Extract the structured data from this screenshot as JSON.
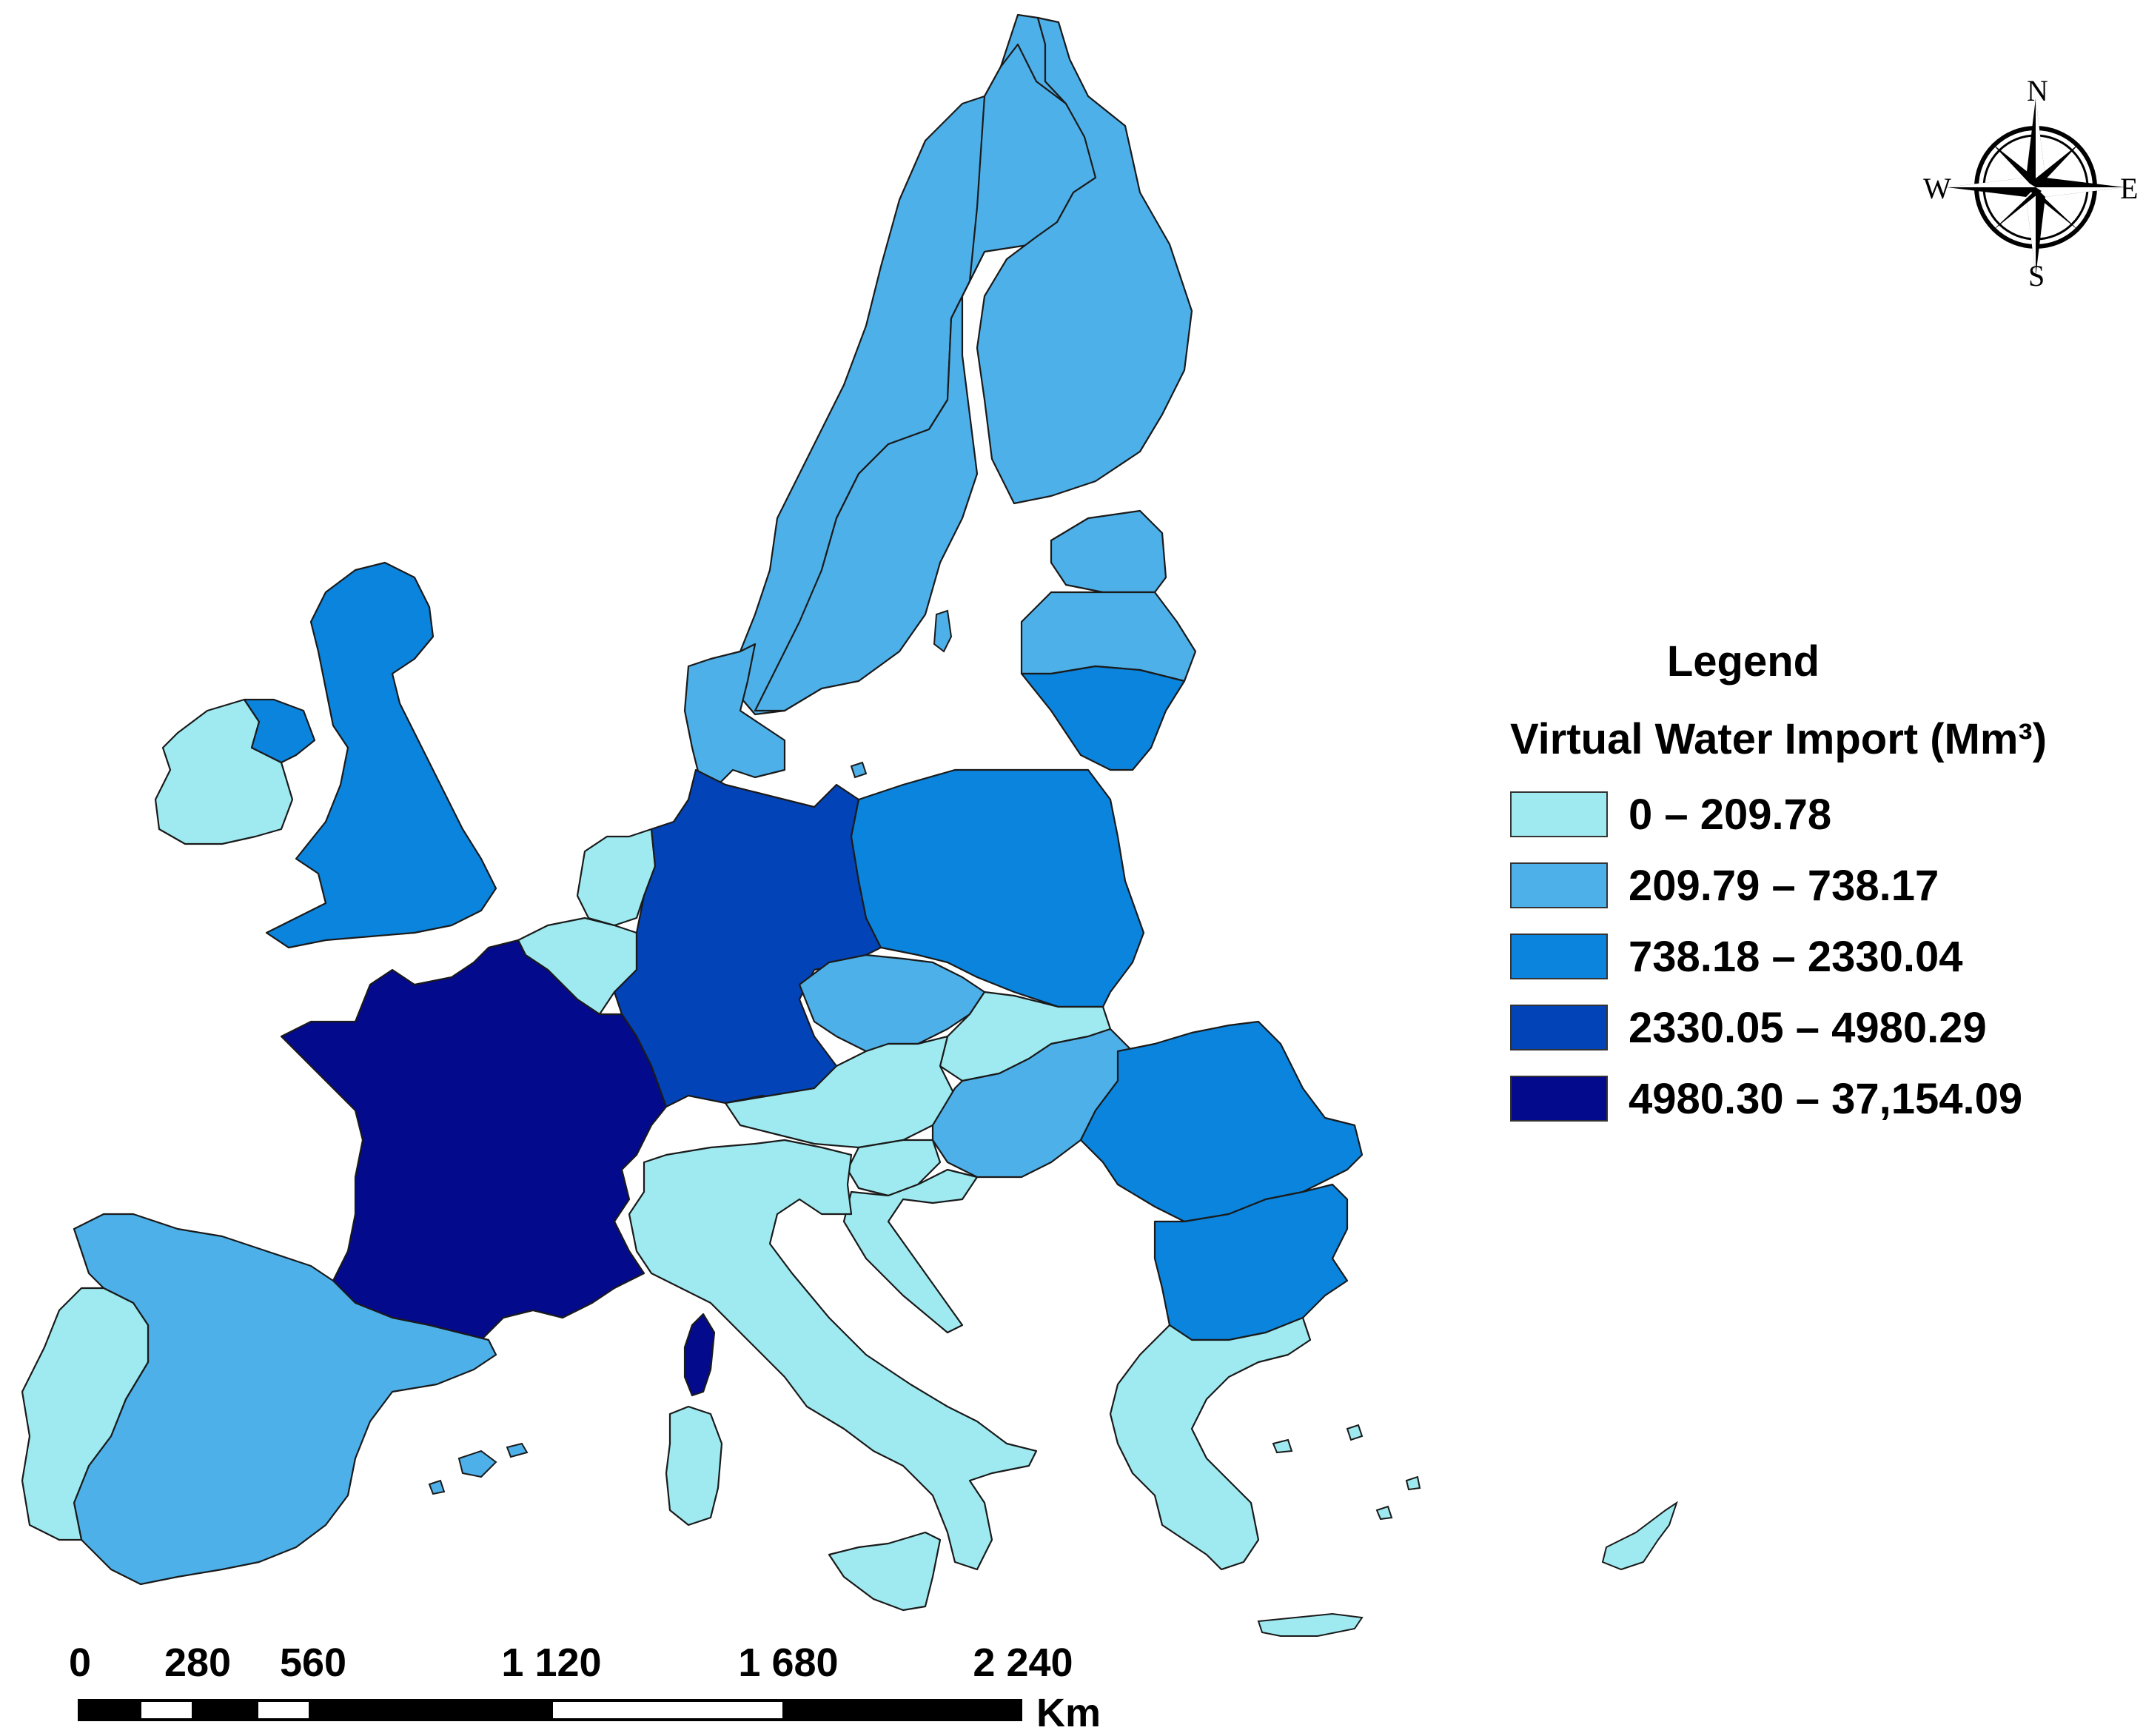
{
  "legend": {
    "title": "Legend",
    "subtitle": "Virtual Water Import (Mm³)",
    "items": [
      {
        "label": "0 – 209.78",
        "color": "#9eeaf0"
      },
      {
        "label": "209.79 – 738.17",
        "color": "#4db0e8"
      },
      {
        "label": "738.18 – 2330.04",
        "color": "#0a84dc"
      },
      {
        "label": "2330.05 – 4980.29",
        "color": "#0343b8"
      },
      {
        "label": "4980.30 – 37,154.09",
        "color": "#030a8c"
      }
    ]
  },
  "compass": {
    "n": "N",
    "s": "S",
    "e": "E",
    "w": "W",
    "icon": "compass-rose-icon"
  },
  "scale": {
    "ticks": [
      "0",
      "280",
      "560",
      "1 120",
      "1 680",
      "2 240"
    ],
    "unit": "Km"
  },
  "map": {
    "classes": {
      "c1": "0 – 209.78",
      "c2": "209.79 – 738.17",
      "c3": "738.18 – 2330.04",
      "c4": "2330.05 – 4980.29",
      "c5": "4980.30 – 37,154.09"
    }
  }
}
